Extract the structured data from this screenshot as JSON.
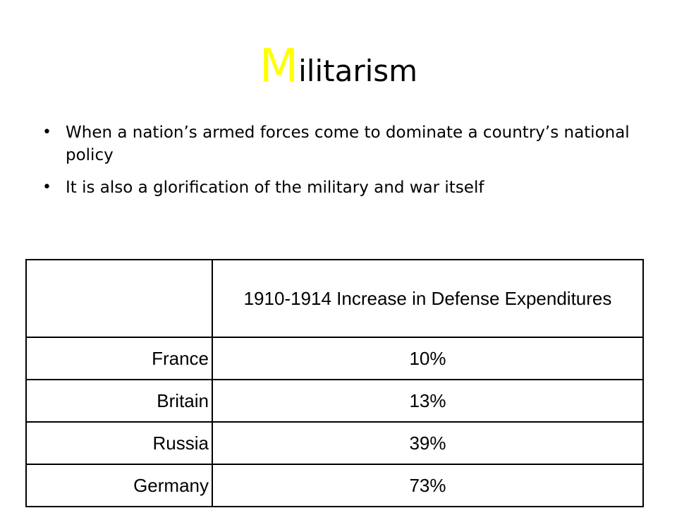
{
  "slide": {
    "title_initial": "M",
    "title_rest": "ilitarism",
    "title_initial_color": "#ffff00",
    "bullets": [
      "When a nation’s armed forces come to dominate a country’s national policy",
      "It is also a glorification of the military and war itself"
    ],
    "bullet_symbol": "•"
  },
  "table": {
    "corner": "",
    "header": "1910-1914 Increase in Defense Expenditures",
    "rows": [
      {
        "country": "France",
        "increase": "10%"
      },
      {
        "country": "Britain",
        "increase": "13%"
      },
      {
        "country": "Russia",
        "increase": "39%"
      },
      {
        "country": "Germany",
        "increase": "73%"
      }
    ]
  }
}
